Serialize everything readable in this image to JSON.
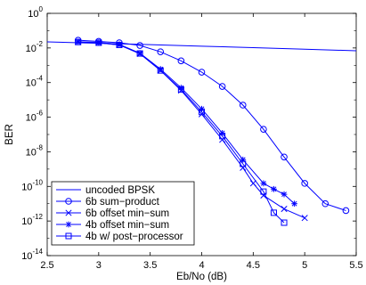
{
  "chart_data": {
    "type": "line",
    "title": "",
    "xlabel": "Eb/No (dB)",
    "ylabel": "BER",
    "xlim": [
      2.5,
      5.5
    ],
    "ylim": [
      1e-14,
      1
    ],
    "yscale": "log",
    "grid": false,
    "legend_position": "bottom-left",
    "x_ticks": [
      "2.5",
      "3",
      "3.5",
      "4",
      "4.5",
      "5",
      "5.5"
    ],
    "y_ticks": [
      {
        "base": "10",
        "exp": "0"
      },
      {
        "base": "10",
        "exp": "-2"
      },
      {
        "base": "10",
        "exp": "-4"
      },
      {
        "base": "10",
        "exp": "-6"
      },
      {
        "base": "10",
        "exp": "-8"
      },
      {
        "base": "10",
        "exp": "-10"
      },
      {
        "base": "10",
        "exp": "-12"
      },
      {
        "base": "10",
        "exp": "-14"
      }
    ],
    "series": [
      {
        "name": "uncoded BPSK",
        "marker": "none",
        "color": "#0000ff",
        "x": [
          2.5,
          3.0,
          3.5,
          4.0,
          4.5,
          5.0,
          5.5
        ],
        "y": [
          0.0224,
          0.0186,
          0.0155,
          0.0127,
          0.0104,
          0.0085,
          0.0069
        ]
      },
      {
        "name": "6b sum−product",
        "marker": "circle",
        "color": "#0000ff",
        "x": [
          2.8,
          3.0,
          3.2,
          3.4,
          3.6,
          3.8,
          4.0,
          4.2,
          4.4,
          4.6,
          4.8,
          5.0,
          5.2,
          5.4
        ],
        "y": [
          0.028,
          0.024,
          0.02,
          0.014,
          0.006,
          0.0018,
          0.0004,
          6e-05,
          5e-06,
          2e-07,
          5e-09,
          1.5e-10,
          1e-11,
          4e-12
        ]
      },
      {
        "name": "6b offset min−sum",
        "marker": "x",
        "color": "#0000ff",
        "x": [
          2.8,
          3.0,
          3.2,
          3.4,
          3.6,
          3.8,
          4.0,
          4.2,
          4.4,
          4.5,
          4.6,
          4.8,
          5.0
        ],
        "y": [
          0.022,
          0.02,
          0.015,
          0.0046,
          0.0005,
          3.5e-05,
          1.5e-06,
          5e-08,
          1.2e-09,
          1.5e-10,
          3e-11,
          5e-12,
          1.5e-12
        ]
      },
      {
        "name": "4b offset min−sum",
        "marker": "star",
        "color": "#0000ff",
        "x": [
          2.8,
          3.0,
          3.2,
          3.4,
          3.6,
          3.8,
          4.0,
          4.2,
          4.4,
          4.6,
          4.7,
          4.8,
          4.9
        ],
        "y": [
          0.023,
          0.021,
          0.016,
          0.005,
          0.0006,
          5e-05,
          3e-06,
          1.2e-07,
          3.5e-09,
          1.5e-10,
          7e-11,
          3.5e-11,
          1e-11
        ]
      },
      {
        "name": "4b w/ post−processor",
        "marker": "square",
        "color": "#0000ff",
        "x": [
          2.8,
          3.0,
          3.2,
          3.4,
          3.6,
          3.8,
          4.0,
          4.2,
          4.4,
          4.6,
          4.7,
          4.8
        ],
        "y": [
          0.022,
          0.02,
          0.015,
          0.0048,
          0.0005,
          4e-05,
          2e-06,
          8e-08,
          2e-09,
          5e-11,
          3e-12,
          8e-13
        ]
      }
    ]
  }
}
